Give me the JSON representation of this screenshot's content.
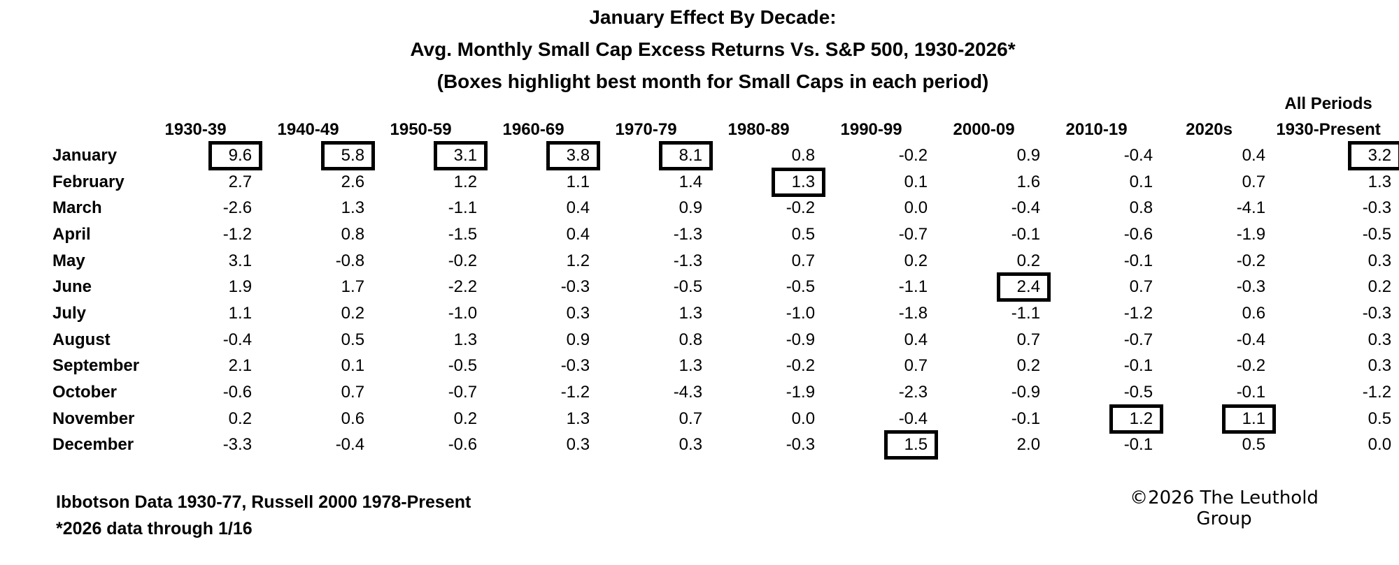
{
  "title": {
    "line1": "January Effect By Decade:",
    "line2": "Avg. Monthly Small Cap Excess Returns Vs. S&P 500, 1930-2026*",
    "line3": "(Boxes highlight best month for Small Caps in each period)"
  },
  "table": {
    "all_periods_line1": "All Periods",
    "all_periods_line2": "1930-Present"
  },
  "footnotes": {
    "line1": "Ibbotson Data 1930-77, Russell 2000 1978-Present",
    "line2": "*2026 data through 1/16"
  },
  "copyright": "©2026 The Leuthold Group",
  "colors": {
    "text": "#000000",
    "background": "#ffffff",
    "box_border": "#000000"
  },
  "chart_data": {
    "type": "table",
    "title": "January Effect By Decade: Avg. Monthly Small Cap Excess Returns Vs. S&P 500, 1930-2026*",
    "subtitle": "(Boxes highlight best month for Small Caps in each period)",
    "columns": [
      "1930-39",
      "1940-49",
      "1950-59",
      "1960-69",
      "1970-79",
      "1980-89",
      "1990-99",
      "2000-09",
      "2010-19",
      "2020s",
      "All Periods 1930-Present"
    ],
    "row_labels": [
      "January",
      "February",
      "March",
      "April",
      "May",
      "June",
      "July",
      "August",
      "September",
      "October",
      "November",
      "December"
    ],
    "rows": [
      [
        9.6,
        5.8,
        3.1,
        3.8,
        8.1,
        0.8,
        -0.2,
        0.9,
        -0.4,
        0.4,
        3.2
      ],
      [
        2.7,
        2.6,
        1.2,
        1.1,
        1.4,
        1.3,
        0.1,
        1.6,
        0.1,
        0.7,
        1.3
      ],
      [
        -2.6,
        1.3,
        -1.1,
        0.4,
        0.9,
        -0.2,
        0.0,
        -0.4,
        0.8,
        -4.1,
        -0.3
      ],
      [
        -1.2,
        0.8,
        -1.5,
        0.4,
        -1.3,
        0.5,
        -0.7,
        -0.1,
        -0.6,
        -1.9,
        -0.5
      ],
      [
        3.1,
        -0.8,
        -0.2,
        1.2,
        -1.3,
        0.7,
        0.2,
        0.2,
        -0.1,
        -0.2,
        0.3
      ],
      [
        1.9,
        1.7,
        -2.2,
        -0.3,
        -0.5,
        -0.5,
        -1.1,
        2.4,
        0.7,
        -0.3,
        0.2
      ],
      [
        1.1,
        0.2,
        -1.0,
        0.3,
        1.3,
        -1.0,
        -1.8,
        -1.1,
        -1.2,
        0.6,
        -0.3
      ],
      [
        -0.4,
        0.5,
        1.3,
        0.9,
        0.8,
        -0.9,
        0.4,
        0.7,
        -0.7,
        -0.4,
        0.3
      ],
      [
        2.1,
        0.1,
        -0.5,
        -0.3,
        1.3,
        -0.2,
        0.7,
        0.2,
        -0.1,
        -0.2,
        0.3
      ],
      [
        -0.6,
        0.7,
        -0.7,
        -1.2,
        -4.3,
        -1.9,
        -2.3,
        -0.9,
        -0.5,
        -0.1,
        -1.2
      ],
      [
        0.2,
        0.6,
        0.2,
        1.3,
        0.7,
        0.0,
        -0.4,
        -0.1,
        1.2,
        1.1,
        0.5
      ],
      [
        -3.3,
        -0.4,
        -0.6,
        0.3,
        0.3,
        -0.3,
        1.5,
        2.0,
        -0.1,
        0.5,
        0.0
      ]
    ],
    "boxed_cells": [
      [
        0,
        0
      ],
      [
        0,
        1
      ],
      [
        0,
        2
      ],
      [
        0,
        3
      ],
      [
        0,
        4
      ],
      [
        0,
        10
      ],
      [
        1,
        5
      ],
      [
        5,
        7
      ],
      [
        10,
        8
      ],
      [
        10,
        9
      ],
      [
        11,
        6
      ]
    ],
    "notes": [
      "Ibbotson Data 1930-77, Russell 2000 1978-Present",
      "*2026 data through 1/16"
    ],
    "source": "©2026 The Leuthold Group",
    "layout": {
      "grid": false,
      "legend": "none",
      "value_unit": "percent excess return"
    }
  }
}
